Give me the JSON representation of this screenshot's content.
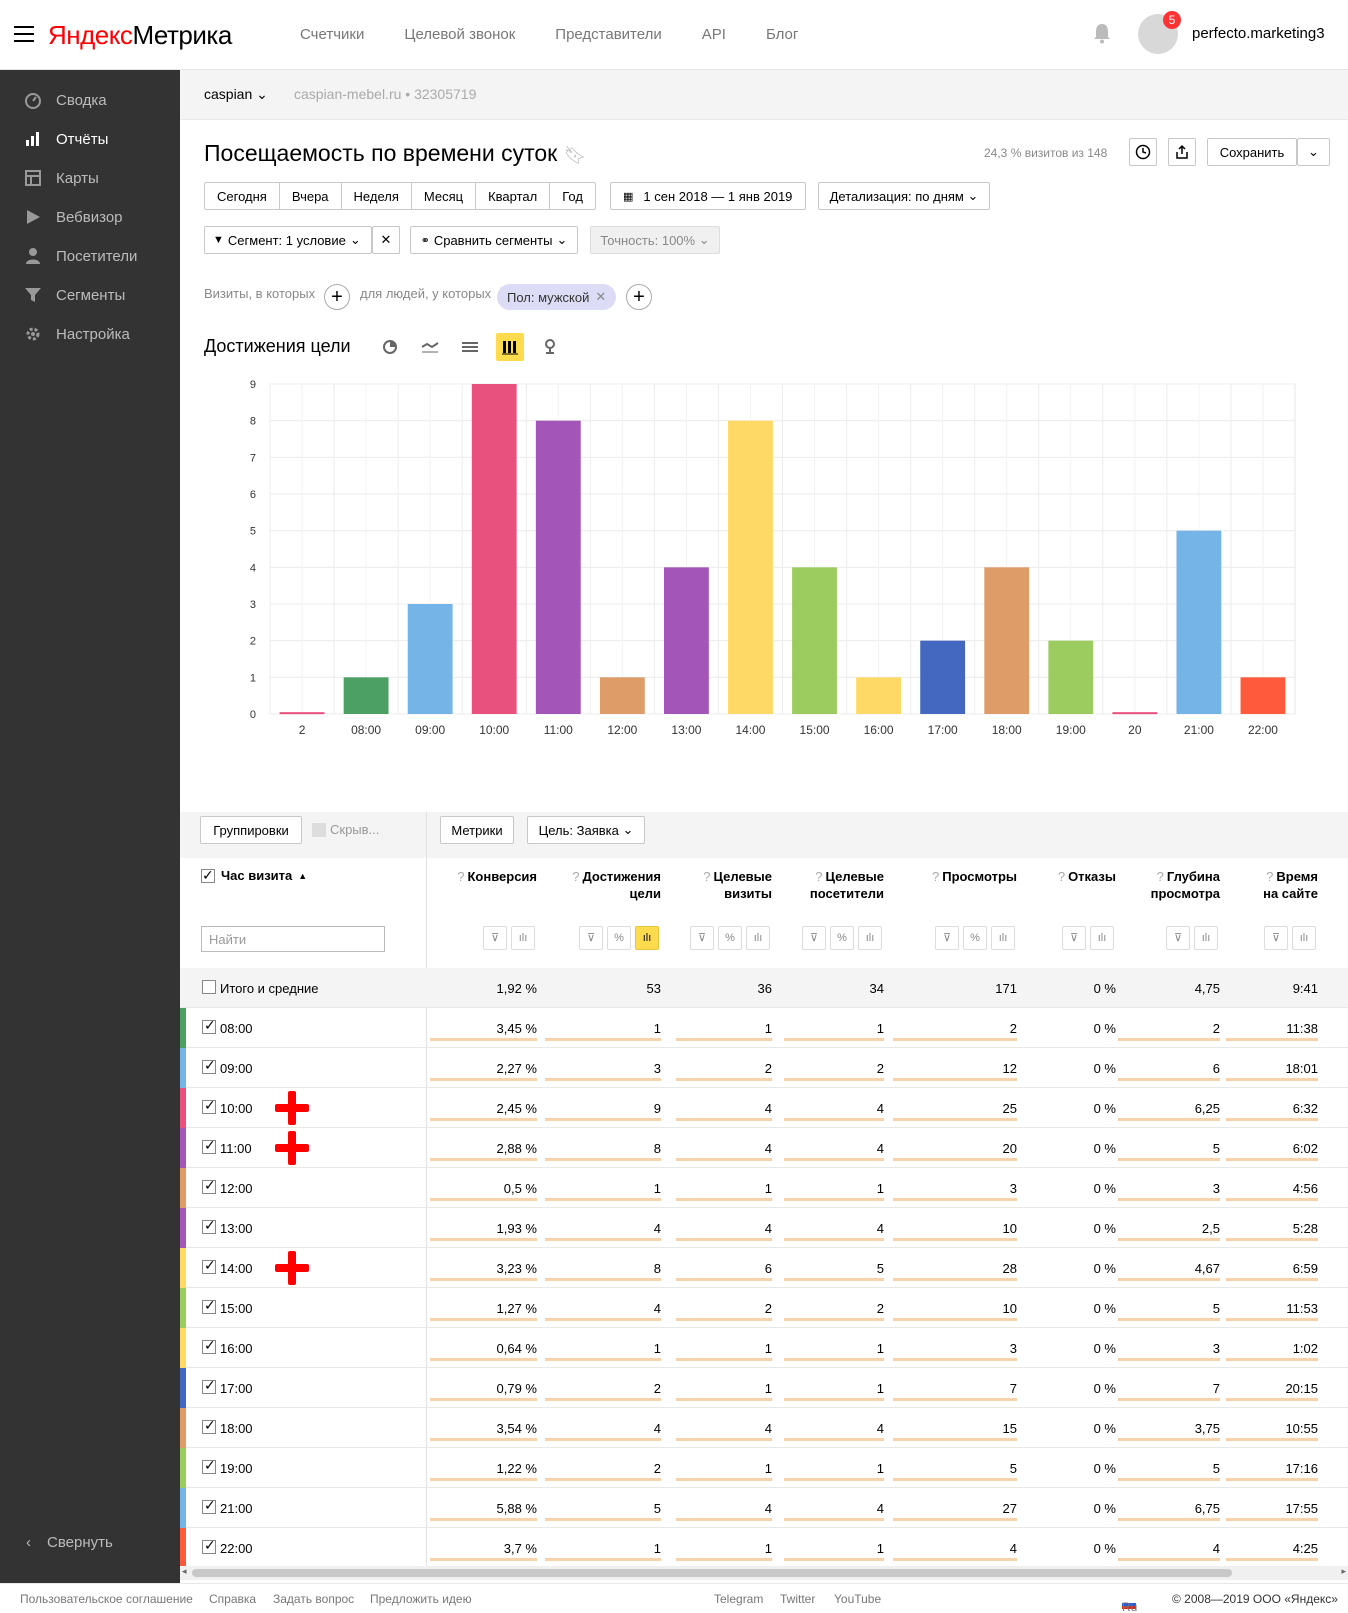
{
  "header": {
    "logo_ya": "Яндекс",
    "logo_rest": "Метрика",
    "nav": [
      "Счетчики",
      "Целевой звонок",
      "Представители",
      "API",
      "Блог"
    ],
    "notifications_count": "5",
    "username": "perfecto.marketing3"
  },
  "sidebar": {
    "items": [
      {
        "label": "Сводка",
        "icon": "gauge-icon"
      },
      {
        "label": "Отчёты",
        "icon": "bar-chart-icon"
      },
      {
        "label": "Карты",
        "icon": "map-icon"
      },
      {
        "label": "Вебвизор",
        "icon": "play-icon"
      },
      {
        "label": "Посетители",
        "icon": "person-icon"
      },
      {
        "label": "Сегменты",
        "icon": "funnel-icon"
      },
      {
        "label": "Настройка",
        "icon": "gear-icon"
      }
    ],
    "collapse_label": "Свернуть"
  },
  "counter": {
    "name": "caspian",
    "site": "caspian-mebel.ru • 32305719"
  },
  "report": {
    "title": "Посещаемость по времени суток",
    "visits_info": "24,3 % визитов из 148",
    "save_label": "Сохранить",
    "periods": [
      "Сегодня",
      "Вчера",
      "Неделя",
      "Месяц",
      "Квартал",
      "Год"
    ],
    "date_range": "1 сен 2018 — 1 янв 2019",
    "detail": "Детализация: по дням",
    "segment": "Сегмент: 1 условие",
    "compare": "Сравнить сегменты",
    "accuracy": "Точность: 100%",
    "visits_filter_label": "Визиты, в которых",
    "people_filter_label": "для людей, у которых",
    "chip": "Пол: мужской",
    "chart_title": "Достижения цели"
  },
  "chart_data": {
    "type": "bar",
    "categories": [
      "2",
      "08:00",
      "09:00",
      "10:00",
      "11:00",
      "12:00",
      "13:00",
      "14:00",
      "15:00",
      "16:00",
      "17:00",
      "18:00",
      "19:00",
      "20",
      "21:00",
      "22:00"
    ],
    "values": [
      0.05,
      1,
      3,
      9,
      8,
      1,
      4,
      8,
      4,
      1,
      2,
      4,
      2,
      0.05,
      5,
      1
    ],
    "colors": [
      "#e8507e",
      "#4ca064",
      "#74b4e6",
      "#e8507e",
      "#a455b8",
      "#dd9c68",
      "#a455b8",
      "#ffd966",
      "#9ccc60",
      "#ffd966",
      "#4468c0",
      "#dd9c68",
      "#9ccc60",
      "#e8507e",
      "#74b4e6",
      "#ff5a3c"
    ],
    "yticks": [
      0,
      1,
      2,
      3,
      4,
      5,
      6,
      7,
      8,
      9
    ],
    "ylim": [
      0,
      9
    ],
    "grid": true
  },
  "table": {
    "groupings_label": "Группировки",
    "hide_label": "Скрыв...",
    "metrics_label": "Метрики",
    "goal_label": "Цель: Заявка",
    "dimension_header": "Час визита",
    "search_placeholder": "Найти",
    "columns": [
      {
        "title1": "Конверсия",
        "title2": ""
      },
      {
        "title1": "Достижения",
        "title2": "цели"
      },
      {
        "title1": "Целевые",
        "title2": "визиты"
      },
      {
        "title1": "Целевые",
        "title2": "посетители"
      },
      {
        "title1": "Просмотры",
        "title2": ""
      },
      {
        "title1": "Отказы",
        "title2": ""
      },
      {
        "title1": "Глубина",
        "title2": "просмотра"
      },
      {
        "title1": "Время",
        "title2": "на сайте"
      }
    ],
    "total": {
      "label": "Итого и средние",
      "values": [
        "1,92 %",
        "53",
        "36",
        "34",
        "171",
        "0 %",
        "4,75",
        "9:41"
      ]
    },
    "rows": [
      {
        "label": "08:00",
        "color": "#4ca064",
        "values": [
          "3,45 %",
          "1",
          "1",
          "1",
          "2",
          "0 %",
          "2",
          "11:38"
        ],
        "mark": false
      },
      {
        "label": "09:00",
        "color": "#74b4e6",
        "values": [
          "2,27 %",
          "3",
          "2",
          "2",
          "12",
          "0 %",
          "6",
          "18:01"
        ],
        "mark": false
      },
      {
        "label": "10:00",
        "color": "#e8507e",
        "values": [
          "2,45 %",
          "9",
          "4",
          "4",
          "25",
          "0 %",
          "6,25",
          "6:32"
        ],
        "mark": true
      },
      {
        "label": "11:00",
        "color": "#a455b8",
        "values": [
          "2,88 %",
          "8",
          "4",
          "4",
          "20",
          "0 %",
          "5",
          "6:02"
        ],
        "mark": true
      },
      {
        "label": "12:00",
        "color": "#dd9c68",
        "values": [
          "0,5 %",
          "1",
          "1",
          "1",
          "3",
          "0 %",
          "3",
          "4:56"
        ],
        "mark": false
      },
      {
        "label": "13:00",
        "color": "#a455b8",
        "values": [
          "1,93 %",
          "4",
          "4",
          "4",
          "10",
          "0 %",
          "2,5",
          "5:28"
        ],
        "mark": false
      },
      {
        "label": "14:00",
        "color": "#ffd966",
        "values": [
          "3,23 %",
          "8",
          "6",
          "5",
          "28",
          "0 %",
          "4,67",
          "6:59"
        ],
        "mark": true
      },
      {
        "label": "15:00",
        "color": "#9ccc60",
        "values": [
          "1,27 %",
          "4",
          "2",
          "2",
          "10",
          "0 %",
          "5",
          "11:53"
        ],
        "mark": false
      },
      {
        "label": "16:00",
        "color": "#ffd966",
        "values": [
          "0,64 %",
          "1",
          "1",
          "1",
          "3",
          "0 %",
          "3",
          "1:02"
        ],
        "mark": false
      },
      {
        "label": "17:00",
        "color": "#4468c0",
        "values": [
          "0,79 %",
          "2",
          "1",
          "1",
          "7",
          "0 %",
          "7",
          "20:15"
        ],
        "mark": false
      },
      {
        "label": "18:00",
        "color": "#dd9c68",
        "values": [
          "3,54 %",
          "4",
          "4",
          "4",
          "15",
          "0 %",
          "3,75",
          "10:55"
        ],
        "mark": false
      },
      {
        "label": "19:00",
        "color": "#9ccc60",
        "values": [
          "1,22 %",
          "2",
          "1",
          "1",
          "5",
          "0 %",
          "5",
          "17:16"
        ],
        "mark": false
      },
      {
        "label": "21:00",
        "color": "#74b4e6",
        "values": [
          "5,88 %",
          "5",
          "4",
          "4",
          "27",
          "0 %",
          "6,75",
          "17:55"
        ],
        "mark": false
      },
      {
        "label": "22:00",
        "color": "#ff5a3c",
        "values": [
          "3,7 %",
          "1",
          "1",
          "1",
          "4",
          "0 %",
          "4",
          "4:25"
        ],
        "mark": false
      }
    ]
  },
  "footer": {
    "left": [
      "Пользовательское соглашение",
      "Справка",
      "Задать вопрос",
      "Предложить идею"
    ],
    "center": [
      "Telegram",
      "Twitter",
      "YouTube"
    ],
    "lang": "Ru",
    "copyright": "© 2008—2019 ООО «Яндекс»"
  }
}
